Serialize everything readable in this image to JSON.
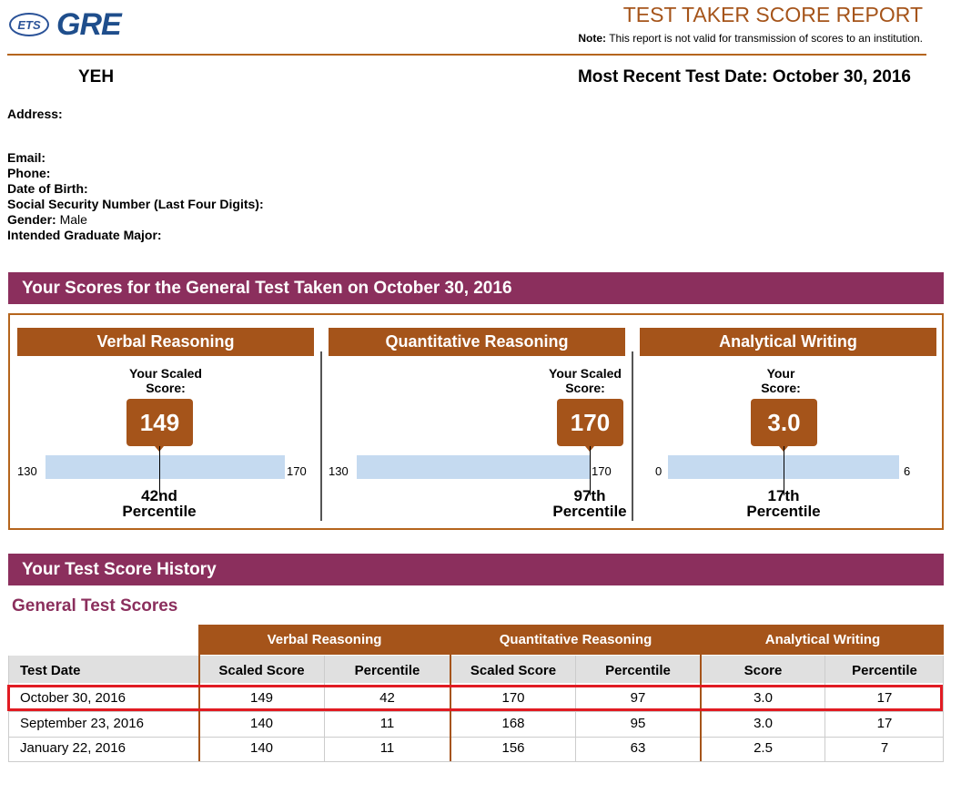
{
  "header": {
    "logo_ets": "ETS",
    "logo_gre": "GRE",
    "report_title": "TEST TAKER SCORE REPORT",
    "note_label": "Note:",
    "note_text": "This report is not valid for transmission of scores to an institution."
  },
  "candidate": {
    "name": "YEH",
    "recent_test_date": "Most Recent Test Date: October 30, 2016"
  },
  "info": {
    "address_label": "Address:",
    "email_label": "Email:",
    "phone_label": "Phone:",
    "dob_label": "Date of Birth:",
    "ssn_label": "Social Security Number (Last Four Digits):",
    "gender_label": "Gender:",
    "gender_value": "Male",
    "major_label": "Intended Graduate Major:"
  },
  "scores_section": {
    "title": "Your Scores for the General Test Taken on October 30, 2016",
    "cards": [
      {
        "title": "Verbal Reasoning",
        "label_line1": "Your Scaled",
        "label_line2": "Score:",
        "score": "149",
        "scale_min": "130",
        "scale_max": "170",
        "fraction": 0.475,
        "percentile_value": "42nd",
        "percentile_label": "Percentile"
      },
      {
        "title": "Quantitative Reasoning",
        "label_line1": "Your Scaled",
        "label_line2": "Score:",
        "score": "170",
        "scale_min": "130",
        "scale_max": "170",
        "fraction": 1.0,
        "percentile_value": "97th",
        "percentile_label": "Percentile"
      },
      {
        "title": "Analytical Writing",
        "label_line1": "Your",
        "label_line2": "Score:",
        "score": "3.0",
        "scale_min": "0",
        "scale_max": "6",
        "fraction": 0.5,
        "percentile_value": "17th",
        "percentile_label": "Percentile"
      }
    ]
  },
  "history_section": {
    "title": "Your Test Score History",
    "subtitle": "General Test Scores",
    "groups": [
      "Verbal Reasoning",
      "Quantitative Reasoning",
      "Analytical Writing"
    ],
    "columns": [
      "Test Date",
      "Scaled Score",
      "Percentile",
      "Scaled Score",
      "Percentile",
      "Score",
      "Percentile"
    ],
    "rows": [
      [
        "October 30, 2016",
        "149",
        "42",
        "170",
        "97",
        "3.0",
        "17"
      ],
      [
        "September 23, 2016",
        "140",
        "11",
        "168",
        "95",
        "3.0",
        "17"
      ],
      [
        "January 22, 2016",
        "140",
        "11",
        "156",
        "63",
        "2.5",
        "7"
      ]
    ],
    "highlight_color": "#e11b22"
  },
  "colors": {
    "brown": "#a5541a",
    "maroon": "#8b2f5d",
    "scale_blue": "#c5daf0"
  }
}
